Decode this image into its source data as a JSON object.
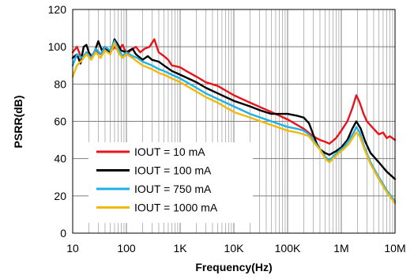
{
  "chart_data": {
    "type": "line",
    "title": "",
    "xlabel": "Frequency(Hz)",
    "ylabel": "PSRR(dB)",
    "xscale": "log",
    "xlim": [
      10,
      10000000
    ],
    "ylim": [
      0,
      120
    ],
    "grid": "log-x major and minor, y major every 20",
    "legend_position": "bottom-left",
    "x_ticks": [
      {
        "value": 10,
        "label": "10"
      },
      {
        "value": 100,
        "label": "100"
      },
      {
        "value": 1000,
        "label": "1K"
      },
      {
        "value": 10000,
        "label": "10K"
      },
      {
        "value": 100000,
        "label": "100K"
      },
      {
        "value": 1000000,
        "label": "1M"
      },
      {
        "value": 10000000,
        "label": "10M"
      }
    ],
    "y_ticks": [
      {
        "value": 0,
        "label": "0"
      },
      {
        "value": 20,
        "label": "20"
      },
      {
        "value": 40,
        "label": "40"
      },
      {
        "value": 60,
        "label": "60"
      },
      {
        "value": 80,
        "label": "80"
      },
      {
        "value": 100,
        "label": "100"
      },
      {
        "value": 120,
        "label": "120"
      }
    ],
    "series": [
      {
        "name": "IOUT = 10 mA",
        "color": "#e8141c",
        "points": [
          [
            10,
            97
          ],
          [
            12,
            100
          ],
          [
            15,
            93
          ],
          [
            18,
            97
          ],
          [
            22,
            95
          ],
          [
            27,
            98
          ],
          [
            33,
            96
          ],
          [
            40,
            99
          ],
          [
            50,
            97
          ],
          [
            60,
            100
          ],
          [
            70,
            98
          ],
          [
            85,
            101
          ],
          [
            100,
            96
          ],
          [
            120,
            98
          ],
          [
            150,
            100
          ],
          [
            180,
            97
          ],
          [
            220,
            99
          ],
          [
            270,
            100
          ],
          [
            330,
            104
          ],
          [
            400,
            97
          ],
          [
            500,
            95
          ],
          [
            600,
            93
          ],
          [
            700,
            90
          ],
          [
            1000,
            89
          ],
          [
            1300,
            87
          ],
          [
            2000,
            84
          ],
          [
            3000,
            81
          ],
          [
            5000,
            79
          ],
          [
            10000,
            74
          ],
          [
            20000,
            70
          ],
          [
            50000,
            65
          ],
          [
            100000,
            61
          ],
          [
            200000,
            56
          ],
          [
            300000,
            52
          ],
          [
            400000,
            50
          ],
          [
            500000,
            49
          ],
          [
            600000,
            48
          ],
          [
            800000,
            51
          ],
          [
            1000000,
            55
          ],
          [
            1300000,
            60
          ],
          [
            1600000,
            67
          ],
          [
            1900000,
            74
          ],
          [
            2200000,
            70
          ],
          [
            2600000,
            64
          ],
          [
            3000000,
            60
          ],
          [
            4000000,
            56
          ],
          [
            5000000,
            53
          ],
          [
            6000000,
            54
          ],
          [
            7000000,
            51
          ],
          [
            8000000,
            52
          ],
          [
            10000000,
            50
          ]
        ]
      },
      {
        "name": "IOUT = 100 mA",
        "color": "#000000",
        "points": [
          [
            10,
            94
          ],
          [
            12,
            96
          ],
          [
            14,
            91
          ],
          [
            16,
            100
          ],
          [
            18,
            101
          ],
          [
            20,
            97
          ],
          [
            23,
            94
          ],
          [
            26,
            98
          ],
          [
            30,
            103
          ],
          [
            35,
            98
          ],
          [
            40,
            100
          ],
          [
            50,
            96
          ],
          [
            60,
            104
          ],
          [
            70,
            101
          ],
          [
            80,
            98
          ],
          [
            100,
            97
          ],
          [
            130,
            99
          ],
          [
            150,
            96
          ],
          [
            200,
            93
          ],
          [
            250,
            95
          ],
          [
            300,
            93
          ],
          [
            400,
            92
          ],
          [
            500,
            90
          ],
          [
            700,
            87
          ],
          [
            1000,
            85
          ],
          [
            2000,
            81
          ],
          [
            3000,
            78
          ],
          [
            5000,
            75
          ],
          [
            10000,
            71
          ],
          [
            20000,
            68
          ],
          [
            30000,
            66
          ],
          [
            50000,
            64
          ],
          [
            100000,
            64
          ],
          [
            150000,
            63
          ],
          [
            200000,
            62
          ],
          [
            250000,
            59
          ],
          [
            300000,
            53
          ],
          [
            350000,
            48
          ],
          [
            400000,
            45
          ],
          [
            500000,
            43
          ],
          [
            600000,
            42
          ],
          [
            800000,
            44
          ],
          [
            1000000,
            46
          ],
          [
            1300000,
            50
          ],
          [
            1600000,
            56
          ],
          [
            1900000,
            60
          ],
          [
            2300000,
            56
          ],
          [
            2800000,
            49
          ],
          [
            3500000,
            43
          ],
          [
            5000000,
            38
          ],
          [
            7000000,
            33
          ],
          [
            10000000,
            29
          ]
        ]
      },
      {
        "name": "IOUT = 750 mA",
        "color": "#1fb0e8",
        "points": [
          [
            10,
            90
          ],
          [
            12,
            96
          ],
          [
            15,
            94
          ],
          [
            18,
            97
          ],
          [
            22,
            94
          ],
          [
            27,
            99
          ],
          [
            33,
            96
          ],
          [
            40,
            100
          ],
          [
            50,
            98
          ],
          [
            60,
            103
          ],
          [
            70,
            99
          ],
          [
            85,
            95
          ],
          [
            100,
            97
          ],
          [
            130,
            95
          ],
          [
            160,
            94
          ],
          [
            200,
            92
          ],
          [
            300,
            90
          ],
          [
            400,
            88
          ],
          [
            500,
            87
          ],
          [
            700,
            85
          ],
          [
            1000,
            83
          ],
          [
            2000,
            78
          ],
          [
            3000,
            75
          ],
          [
            5000,
            72
          ],
          [
            10000,
            68
          ],
          [
            20000,
            64
          ],
          [
            50000,
            60
          ],
          [
            100000,
            57
          ],
          [
            150000,
            56
          ],
          [
            200000,
            55
          ],
          [
            250000,
            53
          ],
          [
            300000,
            50
          ],
          [
            400000,
            45
          ],
          [
            500000,
            41
          ],
          [
            600000,
            39
          ],
          [
            700000,
            41
          ],
          [
            900000,
            44
          ],
          [
            1100000,
            46
          ],
          [
            1400000,
            50
          ],
          [
            1700000,
            54
          ],
          [
            1900000,
            57
          ],
          [
            2200000,
            54
          ],
          [
            2700000,
            46
          ],
          [
            3500000,
            38
          ],
          [
            5000000,
            30
          ],
          [
            7000000,
            23
          ],
          [
            10000000,
            17
          ]
        ]
      },
      {
        "name": "IOUT = 1000 mA",
        "color": "#f2b90a",
        "points": [
          [
            10,
            84
          ],
          [
            12,
            90
          ],
          [
            15,
            93
          ],
          [
            18,
            96
          ],
          [
            22,
            93
          ],
          [
            27,
            97
          ],
          [
            33,
            94
          ],
          [
            40,
            98
          ],
          [
            50,
            96
          ],
          [
            60,
            102
          ],
          [
            70,
            97
          ],
          [
            85,
            94
          ],
          [
            100,
            96
          ],
          [
            130,
            94
          ],
          [
            160,
            92
          ],
          [
            200,
            90
          ],
          [
            300,
            88
          ],
          [
            400,
            86
          ],
          [
            500,
            85
          ],
          [
            700,
            83
          ],
          [
            1000,
            81
          ],
          [
            2000,
            76
          ],
          [
            3000,
            73
          ],
          [
            5000,
            70
          ],
          [
            10000,
            65
          ],
          [
            20000,
            62
          ],
          [
            50000,
            58
          ],
          [
            100000,
            55
          ],
          [
            150000,
            54
          ],
          [
            200000,
            53
          ],
          [
            250000,
            52
          ],
          [
            300000,
            49
          ],
          [
            400000,
            45
          ],
          [
            500000,
            40
          ],
          [
            600000,
            38
          ],
          [
            700000,
            40
          ],
          [
            900000,
            43
          ],
          [
            1100000,
            45
          ],
          [
            1400000,
            48
          ],
          [
            1700000,
            52
          ],
          [
            1900000,
            54
          ],
          [
            2200000,
            52
          ],
          [
            2700000,
            45
          ],
          [
            3500000,
            37
          ],
          [
            5000000,
            29
          ],
          [
            7000000,
            22
          ],
          [
            10000000,
            16
          ]
        ]
      }
    ]
  }
}
